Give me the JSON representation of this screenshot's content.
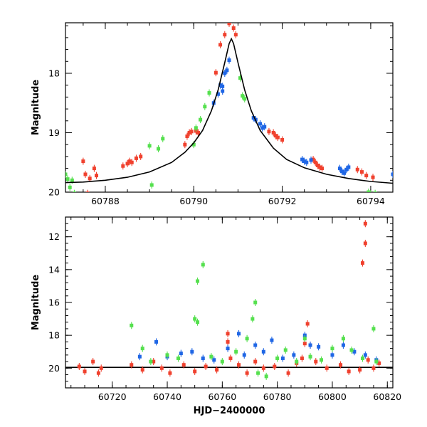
{
  "colors": {
    "red": "#f0412e",
    "blue": "#1f66e5",
    "green": "#55e04e",
    "model": "#000000"
  },
  "chart_data": [
    {
      "type": "scatter",
      "title": "",
      "xlabel": "",
      "ylabel": "Magnitude",
      "xlim": [
        60787.1,
        60794.5
      ],
      "ylim": [
        20.0,
        17.15
      ],
      "y_inverted": true,
      "xticks": [
        60788,
        60790,
        60792,
        60794
      ],
      "yticks": [
        18,
        19,
        20
      ],
      "xtick_labels": [
        "60788",
        "60790",
        "60792",
        "60794"
      ],
      "ytick_labels": [
        "18",
        "19",
        "20"
      ],
      "grid": false,
      "model": {
        "label": "",
        "points": [
          [
            60787.1,
            19.84
          ],
          [
            60787.5,
            19.83
          ],
          [
            60788.0,
            19.8
          ],
          [
            60788.5,
            19.75
          ],
          [
            60789.0,
            19.66
          ],
          [
            60789.5,
            19.5
          ],
          [
            60789.8,
            19.33
          ],
          [
            60790.0,
            19.17
          ],
          [
            60790.2,
            18.96
          ],
          [
            60790.4,
            18.63
          ],
          [
            60790.55,
            18.28
          ],
          [
            60790.7,
            17.82
          ],
          [
            60790.8,
            17.5
          ],
          [
            60790.85,
            17.42
          ],
          [
            60790.9,
            17.5
          ],
          [
            60791.0,
            17.82
          ],
          [
            60791.15,
            18.28
          ],
          [
            60791.3,
            18.63
          ],
          [
            60791.5,
            18.96
          ],
          [
            60791.8,
            19.26
          ],
          [
            60792.1,
            19.45
          ],
          [
            60792.5,
            19.59
          ],
          [
            60793.0,
            19.7
          ],
          [
            60793.5,
            19.77
          ],
          [
            60794.0,
            19.82
          ],
          [
            60794.5,
            19.85
          ]
        ]
      },
      "series": [
        {
          "color_key": "red",
          "points": [
            [
              60787.8,
              19.72
            ],
            [
              60787.75,
              19.6
            ],
            [
              60787.65,
              19.77
            ],
            [
              60787.55,
              19.7
            ],
            [
              60787.5,
              19.48
            ],
            [
              60787.6,
              20.02
            ],
            [
              60788.4,
              19.56
            ],
            [
              60788.5,
              19.52
            ],
            [
              60788.55,
              19.48
            ],
            [
              60788.6,
              19.5
            ],
            [
              60788.7,
              19.43
            ],
            [
              60788.8,
              19.4
            ],
            [
              60789.8,
              19.2
            ],
            [
              60789.85,
              19.06
            ],
            [
              60789.9,
              19.0
            ],
            [
              60789.95,
              18.98
            ],
            [
              60790.05,
              18.97
            ],
            [
              60790.1,
              19.0
            ],
            [
              60790.5,
              17.99
            ],
            [
              60790.6,
              17.52
            ],
            [
              60790.7,
              17.35
            ],
            [
              60790.8,
              17.16
            ],
            [
              60790.85,
              17.1
            ],
            [
              60790.9,
              17.24
            ],
            [
              60790.95,
              17.35
            ],
            [
              60791.7,
              18.98
            ],
            [
              60791.8,
              19.0
            ],
            [
              60791.85,
              19.05
            ],
            [
              60791.9,
              19.08
            ],
            [
              60792.0,
              19.12
            ],
            [
              60792.7,
              19.45
            ],
            [
              60792.75,
              19.5
            ],
            [
              60792.8,
              19.55
            ],
            [
              60792.85,
              19.58
            ],
            [
              60792.9,
              19.6
            ],
            [
              60793.7,
              19.62
            ],
            [
              60793.8,
              19.66
            ],
            [
              60793.9,
              19.72
            ],
            [
              60794.05,
              19.75
            ]
          ]
        },
        {
          "color_key": "blue",
          "points": [
            [
              60790.6,
              18.2
            ],
            [
              60790.65,
              18.22
            ],
            [
              60790.65,
              18.3
            ],
            [
              60790.75,
              17.95
            ],
            [
              60790.7,
              18.0
            ],
            [
              60790.8,
              17.78
            ],
            [
              60790.55,
              18.35
            ],
            [
              60790.45,
              18.5
            ],
            [
              60791.35,
              18.75
            ],
            [
              60791.4,
              18.78
            ],
            [
              60791.5,
              18.85
            ],
            [
              60791.55,
              18.92
            ],
            [
              60791.6,
              18.9
            ],
            [
              60792.45,
              19.45
            ],
            [
              60792.5,
              19.48
            ],
            [
              60792.55,
              19.5
            ],
            [
              60792.65,
              19.46
            ],
            [
              60793.3,
              19.6
            ],
            [
              60793.35,
              19.65
            ],
            [
              60793.4,
              19.68
            ],
            [
              60793.45,
              19.62
            ],
            [
              60793.5,
              19.58
            ],
            [
              60794.5,
              19.7
            ]
          ]
        },
        {
          "color_key": "green",
          "points": [
            [
              60787.1,
              19.7
            ],
            [
              60787.15,
              19.78
            ],
            [
              60787.2,
              19.92
            ],
            [
              60787.25,
              19.8
            ],
            [
              60787.3,
              20.02
            ],
            [
              60789.2,
              19.27
            ],
            [
              60789.3,
              19.1
            ],
            [
              60789.0,
              19.22
            ],
            [
              60789.05,
              19.88
            ],
            [
              60790.0,
              19.2
            ],
            [
              60790.05,
              18.92
            ],
            [
              60790.15,
              18.78
            ],
            [
              60790.25,
              18.56
            ],
            [
              60790.35,
              18.33
            ],
            [
              60791.05,
              18.08
            ],
            [
              60791.1,
              18.38
            ],
            [
              60791.15,
              18.43
            ],
            [
              60793.95,
              20.0
            ],
            [
              60794.0,
              20.03
            ],
            [
              60794.1,
              20.02
            ]
          ]
        }
      ]
    },
    {
      "type": "scatter",
      "title": "",
      "xlabel": "HJD−2400000",
      "ylabel": "Magnitude",
      "xlim": [
        60703,
        60822
      ],
      "ylim": [
        21.2,
        10.8
      ],
      "y_inverted": true,
      "xticks": [
        60720,
        60740,
        60760,
        60780,
        60800,
        60820
      ],
      "yticks": [
        12,
        14,
        16,
        18,
        20
      ],
      "xtick_labels": [
        "60720",
        "60740",
        "60760",
        "60780",
        "60800",
        "60820"
      ],
      "ytick_labels": [
        "12",
        "14",
        "16",
        "18",
        "20"
      ],
      "grid": false,
      "baseline": 19.95,
      "series": [
        {
          "color_key": "red",
          "points": [
            [
              60708,
              19.9
            ],
            [
              60710,
              20.2
            ],
            [
              60713,
              19.6
            ],
            [
              60715,
              20.3
            ],
            [
              60716,
              20.0
            ],
            [
              60727,
              19.8
            ],
            [
              60731,
              20.1
            ],
            [
              60735,
              19.6
            ],
            [
              60738,
              20.0
            ],
            [
              60741,
              20.3
            ],
            [
              60746,
              19.8
            ],
            [
              60750,
              20.2
            ],
            [
              60754,
              19.9
            ],
            [
              60758,
              20.1
            ],
            [
              60762,
              17.9
            ],
            [
              60762,
              18.4
            ],
            [
              60763,
              19.4
            ],
            [
              60766,
              19.8
            ],
            [
              60769,
              20.3
            ],
            [
              60772,
              19.6
            ],
            [
              60775,
              20.0
            ],
            [
              60779,
              19.9
            ],
            [
              60784,
              20.3
            ],
            [
              60787,
              19.7
            ],
            [
              60789,
              19.4
            ],
            [
              60790,
              18.5
            ],
            [
              60791,
              17.3
            ],
            [
              60792,
              18.6
            ],
            [
              60794,
              19.6
            ],
            [
              60798,
              20.0
            ],
            [
              60803,
              19.8
            ],
            [
              60806,
              20.2
            ],
            [
              60810,
              20.1
            ],
            [
              60811,
              13.6
            ],
            [
              60812,
              12.4
            ],
            [
              60812,
              11.2
            ],
            [
              60813,
              19.5
            ],
            [
              60815,
              20.0
            ],
            [
              60817,
              19.7
            ]
          ]
        },
        {
          "color_key": "blue",
          "points": [
            [
              60730,
              19.3
            ],
            [
              60736,
              18.4
            ],
            [
              60740,
              19.3
            ],
            [
              60745,
              19.1
            ],
            [
              60749,
              19.0
            ],
            [
              60753,
              19.4
            ],
            [
              60757,
              19.5
            ],
            [
              60762,
              18.8
            ],
            [
              60766,
              17.9
            ],
            [
              60768,
              19.2
            ],
            [
              60772,
              18.6
            ],
            [
              60775,
              19.0
            ],
            [
              60778,
              18.3
            ],
            [
              60782,
              19.4
            ],
            [
              60786,
              19.2
            ],
            [
              60790,
              18.0
            ],
            [
              60792,
              18.6
            ],
            [
              60795,
              18.7
            ],
            [
              60800,
              19.2
            ],
            [
              60804,
              18.6
            ],
            [
              60808,
              19.0
            ],
            [
              60812,
              19.2
            ],
            [
              60816,
              19.5
            ]
          ]
        },
        {
          "color_key": "green",
          "points": [
            [
              60727,
              17.4
            ],
            [
              60731,
              18.8
            ],
            [
              60734,
              19.6
            ],
            [
              60740,
              19.2
            ],
            [
              60744,
              19.4
            ],
            [
              60750,
              17.0
            ],
            [
              60751,
              17.2
            ],
            [
              60751,
              14.7
            ],
            [
              60753,
              13.7
            ],
            [
              60756,
              19.3
            ],
            [
              60760,
              19.6
            ],
            [
              60765,
              19.0
            ],
            [
              60769,
              18.2
            ],
            [
              60771,
              17.0
            ],
            [
              60772,
              16.0
            ],
            [
              60773,
              20.3
            ],
            [
              60776,
              20.5
            ],
            [
              60780,
              19.4
            ],
            [
              60783,
              18.9
            ],
            [
              60787,
              19.6
            ],
            [
              60790,
              18.2
            ],
            [
              60792,
              19.3
            ],
            [
              60796,
              19.5
            ],
            [
              60800,
              18.8
            ],
            [
              60804,
              18.2
            ],
            [
              60807,
              18.9
            ],
            [
              60811,
              19.4
            ],
            [
              60815,
              17.6
            ],
            [
              60816,
              19.6
            ]
          ]
        }
      ]
    }
  ]
}
